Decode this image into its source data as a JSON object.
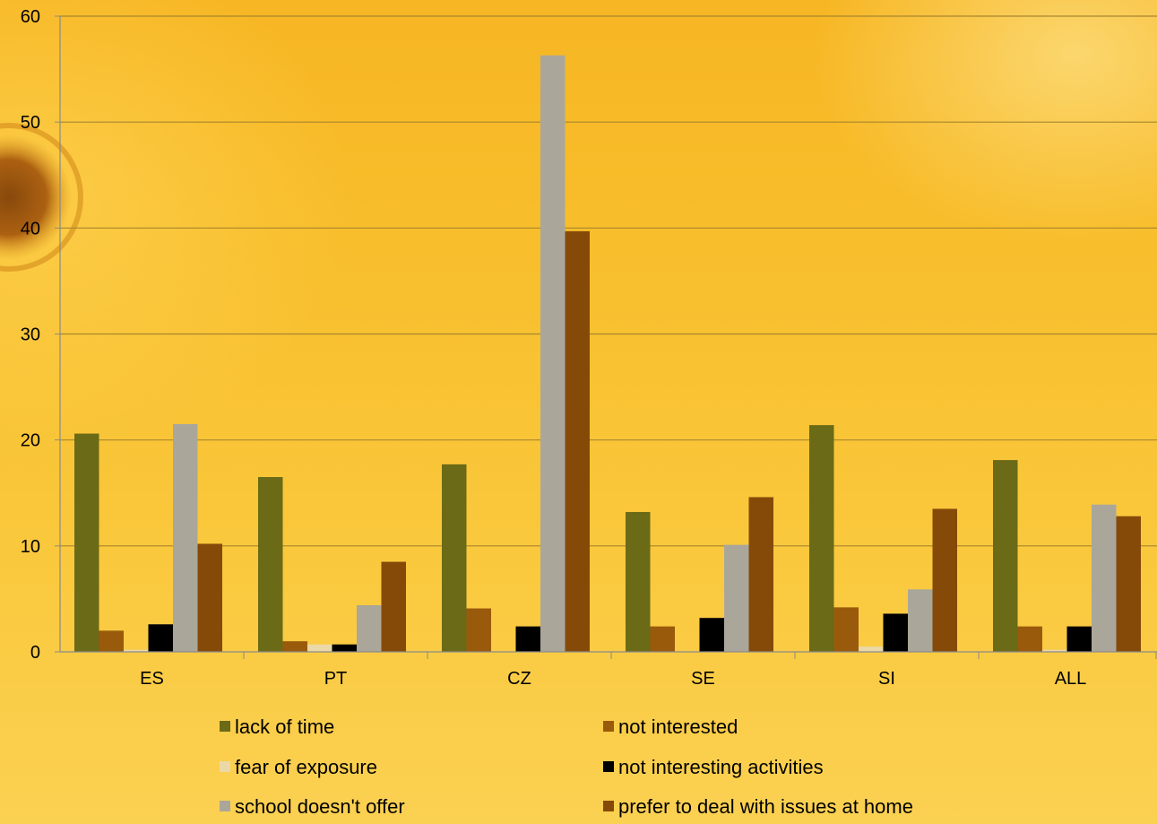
{
  "chart_data": {
    "type": "bar",
    "categories": [
      "ES",
      "PT",
      "CZ",
      "SE",
      "SI",
      "ALL"
    ],
    "series": [
      {
        "name": "lack of time",
        "color": "#6b6a16",
        "values": [
          20.6,
          16.5,
          17.7,
          13.2,
          21.4,
          18.1
        ]
      },
      {
        "name": "not interested",
        "color": "#9a5a0c",
        "values": [
          2.0,
          1.0,
          4.1,
          2.4,
          4.2,
          2.4
        ]
      },
      {
        "name": "fear of exposure",
        "color": "#ead8a6",
        "values": [
          0.2,
          0.7,
          0.0,
          0.0,
          0.5,
          0.2
        ]
      },
      {
        "name": "not interesting activities",
        "color": "#000000",
        "values": [
          2.6,
          0.7,
          2.4,
          3.2,
          3.6,
          2.4
        ]
      },
      {
        "name": "school doesn't offer",
        "color": "#aaa79a",
        "values": [
          21.5,
          4.4,
          56.3,
          10.1,
          5.9,
          13.9
        ]
      },
      {
        "name": "prefer to deal with issues at home",
        "color": "#864a08",
        "values": [
          10.2,
          8.5,
          39.7,
          14.6,
          13.5,
          12.8
        ]
      }
    ],
    "yticks": [
      "0",
      "10",
      "20",
      "30",
      "40",
      "50",
      "60"
    ],
    "ylim": [
      0,
      60
    ],
    "grid": true,
    "legend_position": "bottom",
    "title": "",
    "xlabel": "",
    "ylabel": ""
  }
}
